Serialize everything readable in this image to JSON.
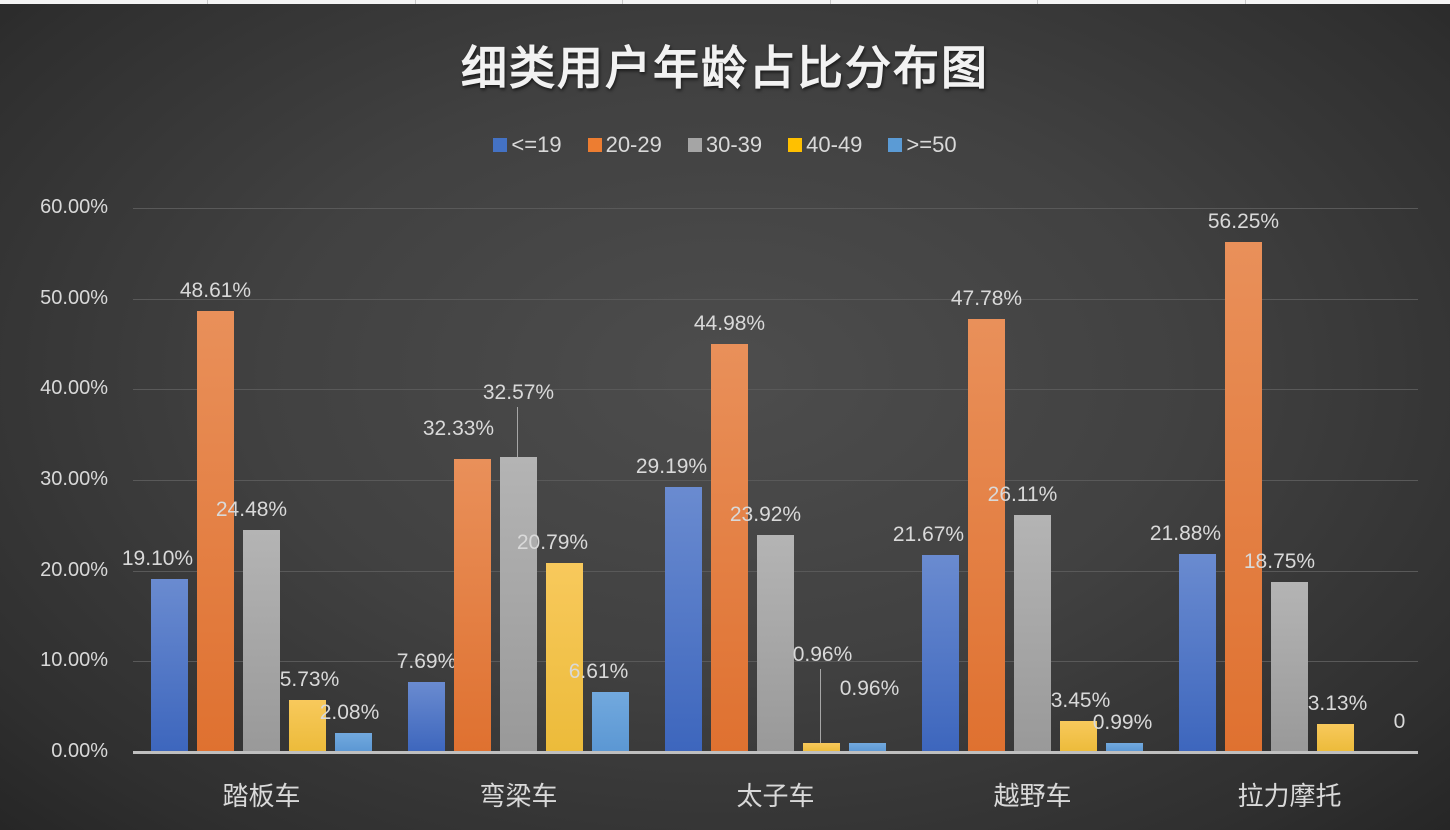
{
  "chart_data": {
    "type": "bar",
    "title": "细类用户年龄占比分布图",
    "xlabel": "",
    "ylabel": "",
    "ylim": [
      0,
      60
    ],
    "yticks": [
      "0.00%",
      "10.00%",
      "20.00%",
      "30.00%",
      "40.00%",
      "50.00%",
      "60.00%"
    ],
    "grid": true,
    "legend_position": "top",
    "categories": [
      "踏板车",
      "弯梁车",
      "太子车",
      "越野车",
      "拉力摩托"
    ],
    "series": [
      {
        "name": "<=19",
        "color": "#4472c4",
        "values": [
          19.1,
          7.69,
          29.19,
          21.67,
          21.88
        ],
        "labels": [
          "19.10%",
          "7.69%",
          "29.19%",
          "21.67%",
          "21.88%"
        ]
      },
      {
        "name": "20-29",
        "color": "#ed7d31",
        "values": [
          48.61,
          32.33,
          44.98,
          47.78,
          56.25
        ],
        "labels": [
          "48.61%",
          "32.33%",
          "44.98%",
          "47.78%",
          "56.25%"
        ]
      },
      {
        "name": "30-39",
        "color": "#a5a5a5",
        "values": [
          24.48,
          32.57,
          23.92,
          26.11,
          18.75
        ],
        "labels": [
          "24.48%",
          "32.57%",
          "23.92%",
          "26.11%",
          "18.75%"
        ]
      },
      {
        "name": "40-49",
        "color": "#ffc000",
        "values": [
          5.73,
          20.79,
          0.96,
          3.45,
          3.13
        ],
        "labels": [
          "5.73%",
          "20.79%",
          "0.96%",
          "3.45%",
          "3.13%"
        ]
      },
      {
        "name": ">=50",
        "color": "#5b9bd5",
        "values": [
          2.08,
          6.61,
          0.96,
          0.99,
          0
        ],
        "labels": [
          "2.08%",
          "6.61%",
          "0.96%",
          "0.99%",
          "0"
        ]
      }
    ]
  },
  "title": "细类用户年龄占比分布图",
  "legend": [
    "<=19",
    "20-29",
    "30-39",
    "40-49",
    ">=50"
  ],
  "yaxis": [
    "60.00%",
    "50.00%",
    "40.00%",
    "30.00%",
    "20.00%",
    "10.00%",
    "0.00%"
  ],
  "categories": [
    "踏板车",
    "弯梁车",
    "太子车",
    "越野车",
    "拉力摩托"
  ]
}
